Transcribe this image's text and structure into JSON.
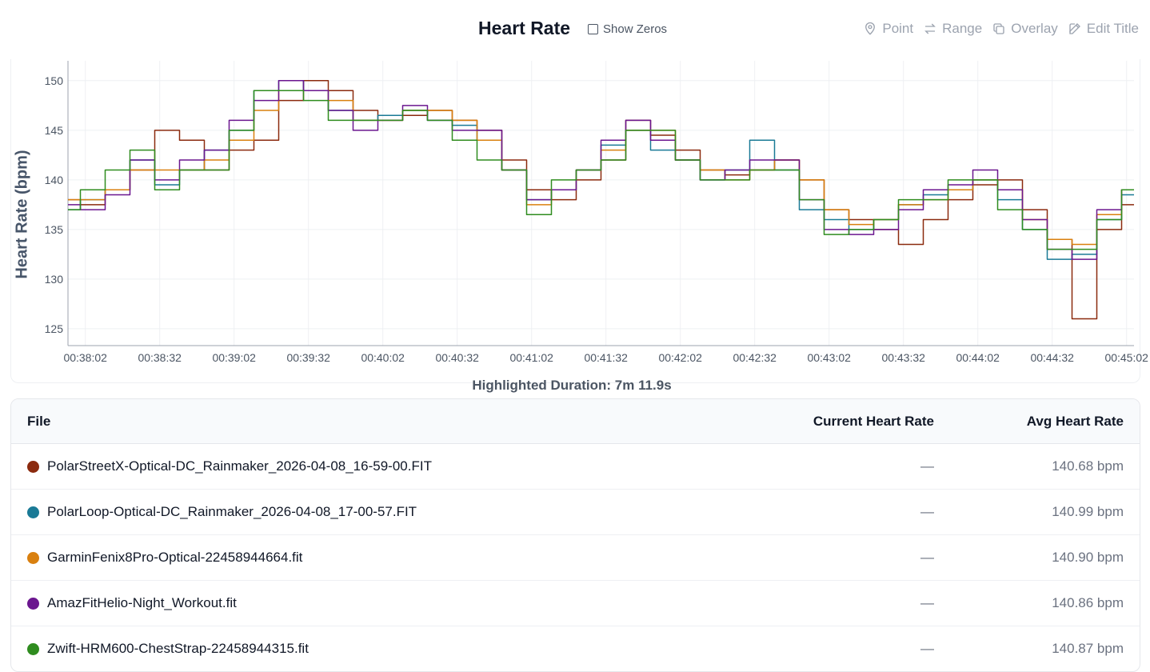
{
  "header": {
    "title": "Heart Rate",
    "show_zeros_label": "Show Zeros",
    "tools": [
      {
        "label": "Point",
        "icon": "map-pin-icon"
      },
      {
        "label": "Range",
        "icon": "arrows-exchange-icon"
      },
      {
        "label": "Overlay",
        "icon": "copy-icon"
      },
      {
        "label": "Edit Title",
        "icon": "edit-icon"
      }
    ]
  },
  "highlighted_duration": "Highlighted Duration: 7m 11.9s",
  "chart_data": {
    "type": "line",
    "ylabel": "Heart Rate (bpm)",
    "xlabel": "",
    "ylim": [
      123.3,
      152
    ],
    "y_ticks": [
      125,
      130,
      135,
      140,
      145,
      150
    ],
    "x_ticks": [
      "00:38:02",
      "00:38:32",
      "00:39:02",
      "00:39:32",
      "00:40:02",
      "00:40:32",
      "00:41:02",
      "00:41:32",
      "00:42:02",
      "00:42:32",
      "00:43:02",
      "00:43:32",
      "00:44:02",
      "00:44:32",
      "00:45:02"
    ],
    "grid": true,
    "x": [
      "00:37:55",
      "00:38:05",
      "00:38:15",
      "00:38:25",
      "00:38:35",
      "00:38:45",
      "00:38:55",
      "00:39:05",
      "00:39:15",
      "00:39:25",
      "00:39:35",
      "00:39:45",
      "00:39:55",
      "00:40:05",
      "00:40:15",
      "00:40:25",
      "00:40:35",
      "00:40:45",
      "00:40:55",
      "00:41:05",
      "00:41:15",
      "00:41:25",
      "00:41:35",
      "00:41:45",
      "00:41:55",
      "00:42:05",
      "00:42:15",
      "00:42:25",
      "00:42:35",
      "00:42:45",
      "00:42:55",
      "00:43:05",
      "00:43:15",
      "00:43:25",
      "00:43:35",
      "00:43:45",
      "00:43:55",
      "00:44:05",
      "00:44:15",
      "00:44:25",
      "00:44:35",
      "00:44:45",
      "00:44:55",
      "00:45:05"
    ],
    "series": [
      {
        "name": "PolarStreetX-Optical-DC_Rainmaker_2026-04-08_16-59-00.FIT",
        "color": "#8b2a0e",
        "values": [
          138,
          137.5,
          139,
          141,
          145,
          144,
          141,
          143,
          144,
          148,
          150,
          149,
          147,
          146,
          146.5,
          147,
          146,
          145,
          142,
          139,
          138,
          140,
          142,
          146,
          144.5,
          143,
          141,
          140.5,
          141,
          142,
          140,
          137,
          136,
          135,
          133.5,
          136,
          138,
          139.5,
          140,
          137,
          134,
          126,
          135,
          137.5
        ]
      },
      {
        "name": "PolarLoop-Optical-DC_Rainmaker_2026-04-08_17-00-57.FIT",
        "color": "#1a7a96",
        "values": [
          137,
          138,
          139,
          142,
          139.5,
          141,
          143,
          145,
          149,
          150,
          149,
          147,
          146,
          146.5,
          147,
          146,
          145.5,
          144,
          141,
          138,
          139,
          141,
          143.5,
          145,
          143,
          142,
          140,
          141,
          144,
          141,
          137,
          136,
          135,
          136,
          137.5,
          138.5,
          139,
          140,
          138,
          135,
          132,
          132.5,
          136,
          138.5
        ]
      },
      {
        "name": "GarminFenix8Pro-Optical-22458944664.fit",
        "color": "#d9800f",
        "values": [
          138,
          138,
          139,
          141,
          141,
          141,
          142,
          144,
          147,
          149,
          149,
          148,
          146,
          146,
          147,
          147,
          146,
          144,
          141,
          137.5,
          139,
          141,
          143,
          145,
          145,
          142,
          141,
          140,
          141,
          142,
          140,
          137,
          135.5,
          136,
          137.5,
          138,
          139,
          140,
          139,
          136,
          134,
          133.5,
          136.5,
          139
        ]
      },
      {
        "name": "AmazFitHelio-Night_Workout.fit",
        "color": "#6b168f",
        "values": [
          137.5,
          137,
          138.5,
          142,
          140,
          142,
          143,
          146,
          148,
          150,
          149,
          147,
          145,
          146,
          147.5,
          146,
          145,
          145,
          141,
          138,
          139,
          141,
          144,
          146,
          144,
          142,
          140,
          141,
          142,
          142,
          138,
          135,
          134.5,
          135,
          137,
          139,
          139.5,
          141,
          139,
          136,
          133,
          132,
          137,
          139
        ]
      },
      {
        "name": "Zwift-HRM600-ChestStrap-22458944315.fit",
        "color": "#2f8c1f",
        "values": [
          137,
          139,
          141,
          143,
          139,
          141,
          141,
          145,
          149,
          149,
          148,
          146,
          146,
          146,
          147,
          146,
          144,
          142,
          141,
          136.5,
          140,
          141,
          142,
          145,
          145,
          142,
          140,
          140,
          141,
          141,
          138,
          134.5,
          135,
          136,
          138,
          138,
          140,
          140,
          137,
          135,
          133,
          133,
          136,
          139
        ]
      }
    ]
  },
  "table": {
    "headers": {
      "file": "File",
      "current": "Current Heart Rate",
      "avg": "Avg Heart Rate"
    },
    "rows": [
      {
        "file": "PolarStreetX-Optical-DC_Rainmaker_2026-04-08_16-59-00.FIT",
        "color": "#8b2a0e",
        "current": "—",
        "avg": "140.68 bpm"
      },
      {
        "file": "PolarLoop-Optical-DC_Rainmaker_2026-04-08_17-00-57.FIT",
        "color": "#1a7a96",
        "current": "—",
        "avg": "140.99 bpm"
      },
      {
        "file": "GarminFenix8Pro-Optical-22458944664.fit",
        "color": "#d9800f",
        "current": "—",
        "avg": "140.90 bpm"
      },
      {
        "file": "AmazFitHelio-Night_Workout.fit",
        "color": "#6b168f",
        "current": "—",
        "avg": "140.86 bpm"
      },
      {
        "file": "Zwift-HRM600-ChestStrap-22458944315.fit",
        "color": "#2f8c1f",
        "current": "—",
        "avg": "140.87 bpm"
      }
    ]
  }
}
